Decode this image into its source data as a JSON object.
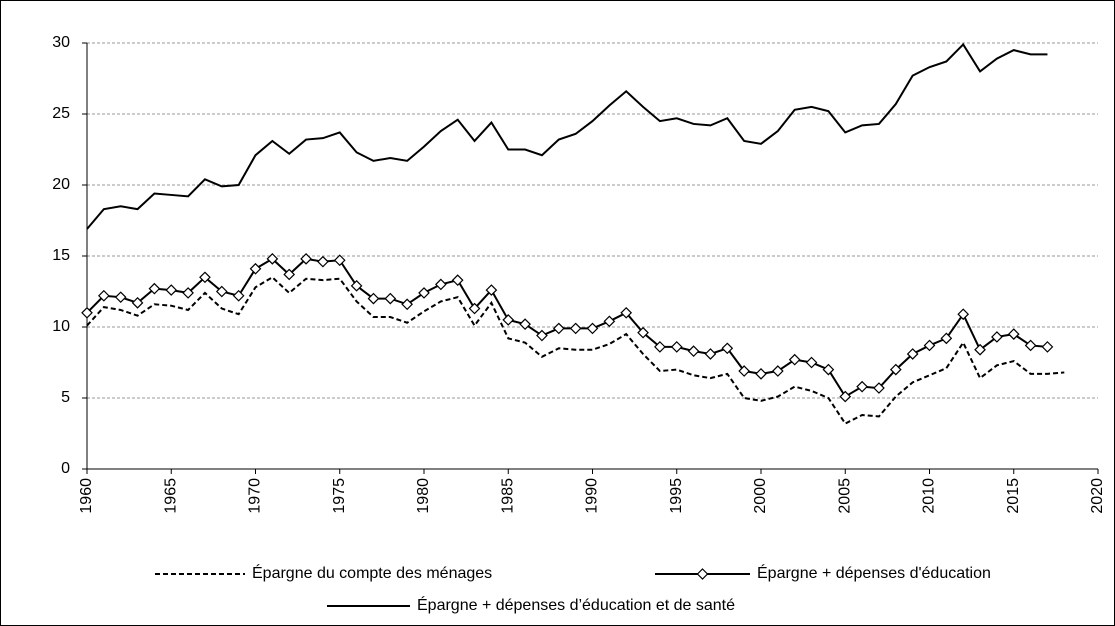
{
  "chart_data": {
    "type": "line",
    "x": [
      1960,
      1961,
      1962,
      1963,
      1964,
      1965,
      1966,
      1967,
      1968,
      1969,
      1970,
      1971,
      1972,
      1973,
      1974,
      1975,
      1976,
      1977,
      1978,
      1979,
      1980,
      1981,
      1982,
      1983,
      1984,
      1985,
      1986,
      1987,
      1988,
      1989,
      1990,
      1991,
      1992,
      1993,
      1994,
      1995,
      1996,
      1997,
      1998,
      1999,
      2000,
      2001,
      2002,
      2003,
      2004,
      2005,
      2006,
      2007,
      2008,
      2009,
      2010,
      2011,
      2012,
      2013,
      2014,
      2015,
      2016,
      2017,
      2018
    ],
    "series": [
      {
        "name": "Épargne du compte des ménages",
        "color": "#000000",
        "dash": true,
        "marker": null,
        "values": [
          10.1,
          11.4,
          11.2,
          10.8,
          11.6,
          11.5,
          11.2,
          12.4,
          11.3,
          10.9,
          12.8,
          13.5,
          12.4,
          13.4,
          13.3,
          13.4,
          11.8,
          10.7,
          10.7,
          10.3,
          11.1,
          11.8,
          12.1,
          10.1,
          11.7,
          9.2,
          8.9,
          7.9,
          8.5,
          8.4,
          8.4,
          8.8,
          9.5,
          8.1,
          6.9,
          7.0,
          6.6,
          6.4,
          6.7,
          5.0,
          4.8,
          5.1,
          5.8,
          5.5,
          5.0,
          3.2,
          3.8,
          3.7,
          5.1,
          6.1,
          6.6,
          7.1,
          8.9,
          6.4,
          7.3,
          7.6,
          6.7,
          6.7,
          6.8
        ]
      },
      {
        "name": "Épargne + dépenses d'éducation",
        "color": "#000000",
        "dash": false,
        "marker": "diamond",
        "values": [
          11.0,
          12.2,
          12.1,
          11.7,
          12.7,
          12.6,
          12.4,
          13.5,
          12.5,
          12.2,
          14.1,
          14.8,
          13.7,
          14.8,
          14.6,
          14.7,
          12.9,
          12.0,
          12.0,
          11.6,
          12.4,
          13.0,
          13.3,
          11.3,
          12.6,
          10.5,
          10.2,
          9.4,
          9.9,
          9.9,
          9.9,
          10.4,
          11.0,
          9.6,
          8.6,
          8.6,
          8.3,
          8.1,
          8.5,
          6.9,
          6.7,
          6.9,
          7.7,
          7.5,
          7.0,
          5.1,
          5.8,
          5.7,
          7.0,
          8.1,
          8.7,
          9.2,
          10.9,
          8.4,
          9.3,
          9.5,
          8.7,
          8.6,
          null
        ]
      },
      {
        "name": "Épargne + dépenses d’éducation et de santé",
        "color": "#000000",
        "dash": false,
        "marker": null,
        "values": [
          16.9,
          18.3,
          18.5,
          18.3,
          19.4,
          19.3,
          19.2,
          20.4,
          19.9,
          20.0,
          22.1,
          23.1,
          22.2,
          23.2,
          23.3,
          23.7,
          22.3,
          21.7,
          21.9,
          21.7,
          22.7,
          23.8,
          24.6,
          23.1,
          24.4,
          22.5,
          22.5,
          22.1,
          23.2,
          23.6,
          24.5,
          25.6,
          26.6,
          25.5,
          24.5,
          24.7,
          24.3,
          24.2,
          24.7,
          23.1,
          22.9,
          23.8,
          25.3,
          25.5,
          25.2,
          23.7,
          24.2,
          24.3,
          25.7,
          27.7,
          28.3,
          28.7,
          29.9,
          28.0,
          28.9,
          29.5,
          29.2,
          29.2,
          null
        ]
      }
    ],
    "xlim": [
      1960,
      2020
    ],
    "xticks": [
      1960,
      1965,
      1970,
      1975,
      1980,
      1985,
      1990,
      1995,
      2000,
      2005,
      2010,
      2015,
      2020
    ],
    "ylim": [
      0,
      30
    ],
    "yticks": [
      0,
      5,
      10,
      15,
      20,
      25,
      30
    ],
    "grid": true
  }
}
